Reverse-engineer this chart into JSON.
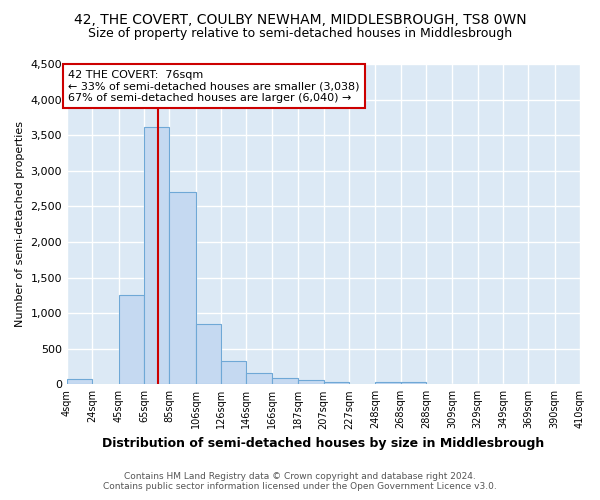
{
  "title": "42, THE COVERT, COULBY NEWHAM, MIDDLESBROUGH, TS8 0WN",
  "subtitle": "Size of property relative to semi-detached houses in Middlesbrough",
  "xlabel": "Distribution of semi-detached houses by size in Middlesbrough",
  "ylabel": "Number of semi-detached properties",
  "footer_line1": "Contains HM Land Registry data © Crown copyright and database right 2024.",
  "footer_line2": "Contains public sector information licensed under the Open Government Licence v3.0.",
  "bin_edges": [
    4,
    24,
    45,
    65,
    85,
    106,
    126,
    146,
    166,
    187,
    207,
    227,
    248,
    268,
    288,
    309,
    329,
    349,
    369,
    390,
    410
  ],
  "bin_labels": [
    "4sqm",
    "24sqm",
    "45sqm",
    "65sqm",
    "85sqm",
    "106sqm",
    "126sqm",
    "146sqm",
    "166sqm",
    "187sqm",
    "207sqm",
    "227sqm",
    "248sqm",
    "268sqm",
    "288sqm",
    "309sqm",
    "329sqm",
    "349sqm",
    "369sqm",
    "390sqm",
    "410sqm"
  ],
  "bar_heights": [
    80,
    0,
    1250,
    3620,
    2700,
    850,
    325,
    155,
    85,
    55,
    35,
    0,
    35,
    35,
    0,
    0,
    0,
    0,
    0,
    0
  ],
  "bar_color": "#c5d9f1",
  "bar_edge_color": "#6fa8d6",
  "property_size": 76,
  "vline_color": "#cc0000",
  "annotation_title": "42 THE COVERT:  76sqm",
  "annotation_line1": "← 33% of semi-detached houses are smaller (3,038)",
  "annotation_line2": "67% of semi-detached houses are larger (6,040) →",
  "annotation_box_facecolor": "#ffffff",
  "annotation_box_edgecolor": "#cc0000",
  "ylim": [
    0,
    4500
  ],
  "yticks": [
    0,
    500,
    1000,
    1500,
    2000,
    2500,
    3000,
    3500,
    4000,
    4500
  ],
  "figure_background": "#ffffff",
  "axes_background": "#dce9f5",
  "grid_color": "#ffffff",
  "title_fontsize": 10,
  "subtitle_fontsize": 9,
  "xlabel_fontsize": 9,
  "ylabel_fontsize": 8
}
